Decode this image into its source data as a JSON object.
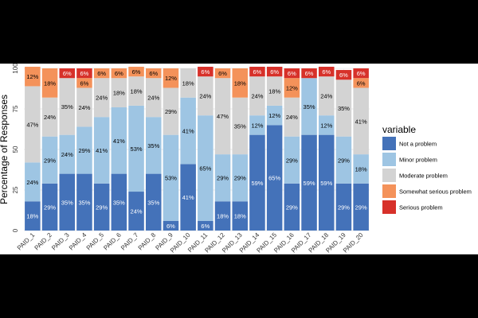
{
  "chart_data": {
    "type": "bar",
    "stacked": true,
    "ylabel": "Percentage of Responses",
    "ylim": [
      0,
      100
    ],
    "y_ticks": [
      "0",
      "25",
      "50",
      "75",
      "100"
    ],
    "legend_title": "variable",
    "legend_position": "right",
    "categories": [
      "PAID_1",
      "PAID_2",
      "PAID_3",
      "PAID_4",
      "PAID_5",
      "PAID_6",
      "PAID_7",
      "PAID_8",
      "PAID_9",
      "PAID_10",
      "PAID_11",
      "PAID_12",
      "PAID_13",
      "PAID_14",
      "PAID_15",
      "PAID_16",
      "PAID_17",
      "PAID_18",
      "PAID_19",
      "PAID_20"
    ],
    "series": [
      {
        "name": "Not a problem",
        "color": "#4472b9",
        "values": [
          18,
          29,
          35,
          35,
          29,
          35,
          24,
          35,
          6,
          41,
          6,
          18,
          18,
          59,
          65,
          29,
          59,
          59,
          29,
          29
        ]
      },
      {
        "name": "Minor problem",
        "color": "#9ec5e3",
        "values": [
          24,
          29,
          24,
          29,
          41,
          41,
          53,
          35,
          53,
          41,
          65,
          29,
          29,
          12,
          12,
          29,
          35,
          12,
          29,
          18
        ]
      },
      {
        "name": "Moderate problem",
        "color": "#d3d3d3",
        "values": [
          47,
          24,
          35,
          24,
          24,
          18,
          18,
          24,
          29,
          18,
          24,
          47,
          35,
          24,
          18,
          24,
          0,
          24,
          35,
          41
        ]
      },
      {
        "name": "Somewhat serious problem",
        "color": "#f4925a",
        "values": [
          12,
          18,
          0,
          6,
          6,
          6,
          6,
          6,
          12,
          0,
          0,
          6,
          18,
          0,
          0,
          12,
          0,
          0,
          0,
          6
        ]
      },
      {
        "name": "Serious problem",
        "color": "#d7312a",
        "values": [
          0,
          0,
          6,
          6,
          0,
          0,
          0,
          0,
          0,
          0,
          6,
          0,
          0,
          6,
          6,
          6,
          6,
          6,
          6,
          6
        ]
      }
    ]
  }
}
